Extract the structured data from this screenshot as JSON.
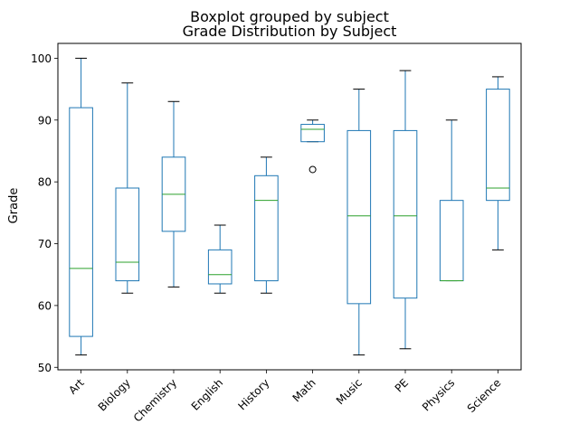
{
  "chart_data": {
    "type": "boxplot",
    "suptitle": "Boxplot grouped by subject",
    "title": "Grade Distribution by Subject",
    "xlabel": "",
    "ylabel": "Grade",
    "ylim": [
      49.6,
      102.4
    ],
    "yticks": [
      50,
      60,
      70,
      80,
      90,
      100
    ],
    "grid": false,
    "colors": {
      "box": "#1f77b4",
      "median": "#2ca02c",
      "flier": "#000000"
    },
    "categories": [
      "Art",
      "Biology",
      "Chemistry",
      "English",
      "History",
      "Math",
      "Music",
      "PE",
      "Physics",
      "Science"
    ],
    "boxes": [
      {
        "label": "Art",
        "whislo": 52,
        "q1": 55,
        "med": 66,
        "q3": 92,
        "whishi": 100,
        "fliers": []
      },
      {
        "label": "Biology",
        "whislo": 62,
        "q1": 64,
        "med": 67,
        "q3": 79,
        "whishi": 96,
        "fliers": []
      },
      {
        "label": "Chemistry",
        "whislo": 63,
        "q1": 72,
        "med": 78,
        "q3": 84,
        "whishi": 93,
        "fliers": []
      },
      {
        "label": "English",
        "whislo": 62,
        "q1": 63.5,
        "med": 65,
        "q3": 69,
        "whishi": 73,
        "fliers": []
      },
      {
        "label": "History",
        "whislo": 62,
        "q1": 64,
        "med": 77,
        "q3": 81,
        "whishi": 84,
        "fliers": []
      },
      {
        "label": "Math",
        "whislo": 86.5,
        "q1": 86.5,
        "med": 88.5,
        "q3": 89.3,
        "whishi": 90,
        "fliers": [
          82
        ]
      },
      {
        "label": "Music",
        "whislo": 52,
        "q1": 60.3,
        "med": 74.5,
        "q3": 88.3,
        "whishi": 95,
        "fliers": []
      },
      {
        "label": "PE",
        "whislo": 53,
        "q1": 61.2,
        "med": 74.5,
        "q3": 88.3,
        "whishi": 98,
        "fliers": []
      },
      {
        "label": "Physics",
        "whislo": 64,
        "q1": 64,
        "med": 64,
        "q3": 77,
        "whishi": 90,
        "fliers": []
      },
      {
        "label": "Science",
        "whislo": 69,
        "q1": 77,
        "med": 79,
        "q3": 95,
        "whishi": 97,
        "fliers": []
      }
    ]
  }
}
